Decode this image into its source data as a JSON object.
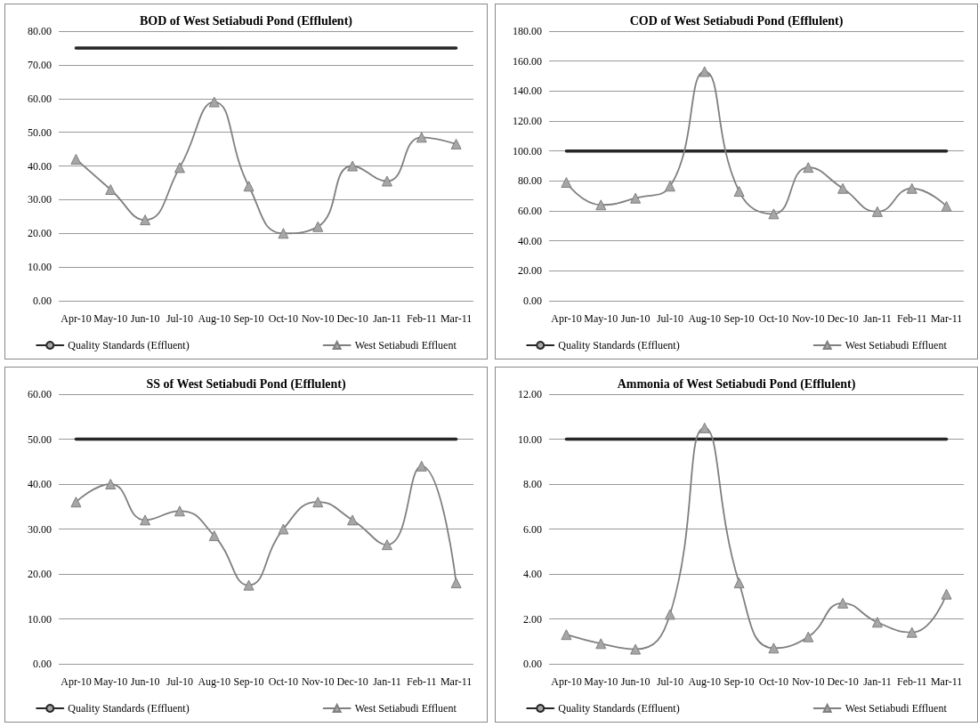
{
  "chart_data": [
    {
      "type": "line",
      "title": "BOD of West Setiabudi Pond (Efflulent)",
      "categories": [
        "Apr-10",
        "May-10",
        "Jun-10",
        "Jul-10",
        "Aug-10",
        "Sep-10",
        "Oct-10",
        "Nov-10",
        "Dec-10",
        "Jan-11",
        "Feb-11",
        "Mar-11"
      ],
      "series": [
        {
          "name": "Quality Standards (Effluent)",
          "color": "#262626",
          "marker": "none",
          "values": [
            75,
            75,
            75,
            75,
            75,
            75,
            75,
            75,
            75,
            75,
            75,
            75
          ]
        },
        {
          "name": "West Setiabudi Effluent",
          "color": "#7f7f7f",
          "marker": "triangle",
          "values": [
            42,
            33,
            24,
            39.5,
            59,
            34,
            20,
            22,
            40,
            35.5,
            48.5,
            46.5
          ]
        }
      ],
      "ylim": [
        0,
        80
      ],
      "yticks": [
        {
          "value": 0,
          "label": "0.00"
        },
        {
          "value": 10,
          "label": "10.00"
        },
        {
          "value": 20,
          "label": "20.00"
        },
        {
          "value": 30,
          "label": "30.00"
        },
        {
          "value": 40,
          "label": "40.00"
        },
        {
          "value": 50,
          "label": "50.00"
        },
        {
          "value": 60,
          "label": "60.00"
        },
        {
          "value": 70,
          "label": "70.00"
        },
        {
          "value": 80,
          "label": "80.00"
        }
      ],
      "grid": "y",
      "legend": "bottom"
    },
    {
      "type": "line",
      "title": "COD of West Setiabudi Pond (Efflulent)",
      "categories": [
        "Apr-10",
        "May-10",
        "Jun-10",
        "Jul-10",
        "Aug-10",
        "Sep-10",
        "Oct-10",
        "Nov-10",
        "Dec-10",
        "Jan-11",
        "Feb-11",
        "Mar-11"
      ],
      "series": [
        {
          "name": "Quality Standards (Effluent)",
          "color": "#262626",
          "marker": "none",
          "values": [
            100,
            100,
            100,
            100,
            100,
            100,
            100,
            100,
            100,
            100,
            100,
            100
          ]
        },
        {
          "name": "West Setiabudi Effluent",
          "color": "#7f7f7f",
          "marker": "triangle",
          "values": [
            79,
            64,
            68.5,
            76.5,
            153,
            73,
            58,
            89,
            75,
            59.5,
            75,
            63
          ]
        }
      ],
      "ylim": [
        0,
        180
      ],
      "yticks": [
        {
          "value": 0,
          "label": "0.00"
        },
        {
          "value": 20,
          "label": "20.00"
        },
        {
          "value": 40,
          "label": "40.00"
        },
        {
          "value": 60,
          "label": "60.00"
        },
        {
          "value": 80,
          "label": "80.00"
        },
        {
          "value": 100,
          "label": "100.00"
        },
        {
          "value": 120,
          "label": "120.00"
        },
        {
          "value": 140,
          "label": "140.00"
        },
        {
          "value": 160,
          "label": "160.00"
        },
        {
          "value": 180,
          "label": "180.00"
        }
      ],
      "grid": "y",
      "legend": "bottom"
    },
    {
      "type": "line",
      "title": "SS of West Setiabudi Pond (Efflulent)",
      "categories": [
        "Apr-10",
        "May-10",
        "Jun-10",
        "Jul-10",
        "Aug-10",
        "Sep-10",
        "Oct-10",
        "Nov-10",
        "Dec-10",
        "Jan-11",
        "Feb-11",
        "Mar-11"
      ],
      "series": [
        {
          "name": "Quality Standards (Effluent)",
          "color": "#262626",
          "marker": "none",
          "values": [
            50,
            50,
            50,
            50,
            50,
            50,
            50,
            50,
            50,
            50,
            50,
            50
          ]
        },
        {
          "name": "West Setiabudi Effluent",
          "color": "#7f7f7f",
          "marker": "triangle",
          "values": [
            36,
            40,
            32,
            34,
            28.5,
            17.5,
            30,
            36,
            32,
            26.5,
            44,
            18
          ]
        }
      ],
      "ylim": [
        0,
        60
      ],
      "yticks": [
        {
          "value": 0,
          "label": "0.00"
        },
        {
          "value": 10,
          "label": "10.00"
        },
        {
          "value": 20,
          "label": "20.00"
        },
        {
          "value": 30,
          "label": "30.00"
        },
        {
          "value": 40,
          "label": "40.00"
        },
        {
          "value": 50,
          "label": "50.00"
        },
        {
          "value": 60,
          "label": "60.00"
        }
      ],
      "grid": "y",
      "legend": "bottom"
    },
    {
      "type": "line",
      "title": "Ammonia of West Setiabudi Pond (Efflulent)",
      "categories": [
        "Apr-10",
        "May-10",
        "Jun-10",
        "Jul-10",
        "Aug-10",
        "Sep-10",
        "Oct-10",
        "Nov-10",
        "Dec-10",
        "Jan-11",
        "Feb-11",
        "Mar-11"
      ],
      "series": [
        {
          "name": "Quality Standards (Effluent)",
          "color": "#262626",
          "marker": "none",
          "values": [
            10,
            10,
            10,
            10,
            10,
            10,
            10,
            10,
            10,
            10,
            10,
            10
          ]
        },
        {
          "name": "West Setiabudi Effluent",
          "color": "#7f7f7f",
          "marker": "triangle",
          "values": [
            1.3,
            0.9,
            0.65,
            2.2,
            10.5,
            3.6,
            0.7,
            1.2,
            2.7,
            1.85,
            1.4,
            3.1
          ]
        }
      ],
      "ylim": [
        0,
        12
      ],
      "yticks": [
        {
          "value": 0,
          "label": "0.00"
        },
        {
          "value": 2,
          "label": "2.00"
        },
        {
          "value": 4,
          "label": "4.00"
        },
        {
          "value": 6,
          "label": "6.00"
        },
        {
          "value": 8,
          "label": "8.00"
        },
        {
          "value": 10,
          "label": "10.00"
        },
        {
          "value": 12,
          "label": "12.00"
        }
      ],
      "grid": "y",
      "legend": "bottom"
    }
  ]
}
